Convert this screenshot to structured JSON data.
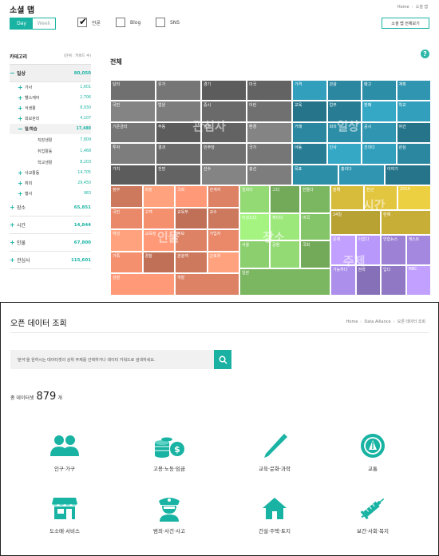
{
  "top": {
    "title": "소셜 맵",
    "breadcrumb": [
      "Home",
      "소셜 맵"
    ],
    "period": {
      "day": "Day",
      "week": "Week",
      "selected": "Day"
    },
    "filters": [
      {
        "label": "언론",
        "checked": true
      },
      {
        "label": "Blog",
        "checked": false
      },
      {
        "label": "SNS",
        "checked": false
      }
    ],
    "full_view_button": "소셜 맵 전체보기",
    "help": "?",
    "category": {
      "title": "카테고리",
      "unit": "(단위 : 키워드 수)",
      "items": [
        {
          "sign": "−",
          "label": "일상",
          "value": "80,050",
          "level": 0,
          "active": true
        },
        {
          "sign": "+",
          "label": "가사",
          "value": "1,601",
          "level": 1
        },
        {
          "sign": "+",
          "label": "헬스케어",
          "value": "2,706",
          "level": 1
        },
        {
          "sign": "+",
          "label": "식생활",
          "value": "8,930",
          "level": 1
        },
        {
          "sign": "+",
          "label": "외모관리",
          "value": "4,107",
          "level": 1
        },
        {
          "sign": "−",
          "label": "일/학습",
          "value": "17,480",
          "level": 1,
          "selected": true
        },
        {
          "sign": "",
          "label": "직장생활",
          "value": "7,809",
          "level": 2
        },
        {
          "sign": "",
          "label": "취업활동",
          "value": "1,468",
          "level": 2
        },
        {
          "sign": "",
          "label": "학교생활",
          "value": "8,203",
          "level": 2
        },
        {
          "sign": "+",
          "label": "사교활동",
          "value": "14,705",
          "level": 1
        },
        {
          "sign": "+",
          "label": "취미",
          "value": "29,450",
          "level": 1
        },
        {
          "sign": "+",
          "label": "행사",
          "value": "983",
          "level": 1
        },
        {
          "sign": "+",
          "label": "장소",
          "value": "65,851",
          "level": 0
        },
        {
          "sign": "+",
          "label": "시간",
          "value": "14,844",
          "level": 0
        },
        {
          "sign": "+",
          "label": "인물",
          "value": "67,800",
          "level": 0
        },
        {
          "sign": "+",
          "label": "관심사",
          "value": "115,601",
          "level": 0
        }
      ]
    },
    "treemap": {
      "title": "전체",
      "groups": [
        {
          "name": "관심사",
          "color": "#707070",
          "cells": [
            "달리",
            "유가",
            "경기",
            "미국",
            "국민",
            "법원",
            "증시",
            "이란",
            "기준금리",
            "주동",
            "일본",
            "환경",
            "투자",
            "결과",
            "민주당",
            "국가",
            "가치",
            "전망",
            "선수",
            "총선"
          ]
        },
        {
          "name": "일상",
          "color": "#2d8ea8",
          "cells": [
            "가격",
            "관광",
            "패고",
            "계획",
            "교육",
            "업무",
            "판매",
            "학교",
            "거래",
            "회의",
            "공시",
            "여건",
            "아동",
            "인사",
            "건의다",
            "관심",
            "목표",
            "홍리다",
            "이야기"
          ]
        },
        {
          "name": "인물",
          "color": "#e9896a",
          "cells": [
            "정부",
            "회장",
            "국회",
            "관계자",
            "국민",
            "고객",
            "교육부",
            "교수",
            "여성",
            "교육청",
            "후보",
            "가입자",
            "가족",
            "경찰",
            "관광객",
            "근로자",
            "검찰",
            "개발"
          ]
        },
        {
          "name": "장소",
          "color": "#8ccf6e",
          "cells": [
            "일바다",
            "그다",
            "한들다",
            "이상노다",
            "체다다",
            "미국",
            "서울",
            "공항",
            "국회",
            "일본"
          ]
        },
        {
          "name": "시간",
          "color": "#e2c63f",
          "cells": [
            "올해",
            "전년",
            "2014",
            "24일",
            "현재"
          ]
        },
        {
          "name": "주제",
          "color": "#a488e0",
          "cells": [
            "문제",
            "이없다",
            "연합뉴스",
            "게스트",
            "가능하다",
            "권력",
            "입다",
            "MBC"
          ]
        }
      ]
    }
  },
  "bottom": {
    "title": "오픈 데이터 조회",
    "breadcrumb": [
      "Home",
      "Data Alliance",
      "오픈 데이터 조회"
    ],
    "search_placeholder": "'분석'을 원하시는 데이터셋의 상위 주제를 선택하거나 데이터 키워드로 검색하세요.",
    "total_prefix": "총 데이터셋",
    "total_count": "879",
    "total_suffix": "개",
    "categories": [
      {
        "label": "인구·가구",
        "icon": "people-icon"
      },
      {
        "label": "고용·노동·임금",
        "icon": "coins-icon"
      },
      {
        "label": "교육·문화·과학",
        "icon": "pencil-icon"
      },
      {
        "label": "교통",
        "icon": "traffic-icon"
      },
      {
        "label": "도소매·서비스",
        "icon": "shop-icon"
      },
      {
        "label": "범죄·사건·사고",
        "icon": "police-icon"
      },
      {
        "label": "건설·주택·토지",
        "icon": "house-icon"
      },
      {
        "label": "보건·사회·복지",
        "icon": "syringe-icon"
      }
    ],
    "accent": "#19b3a3"
  }
}
